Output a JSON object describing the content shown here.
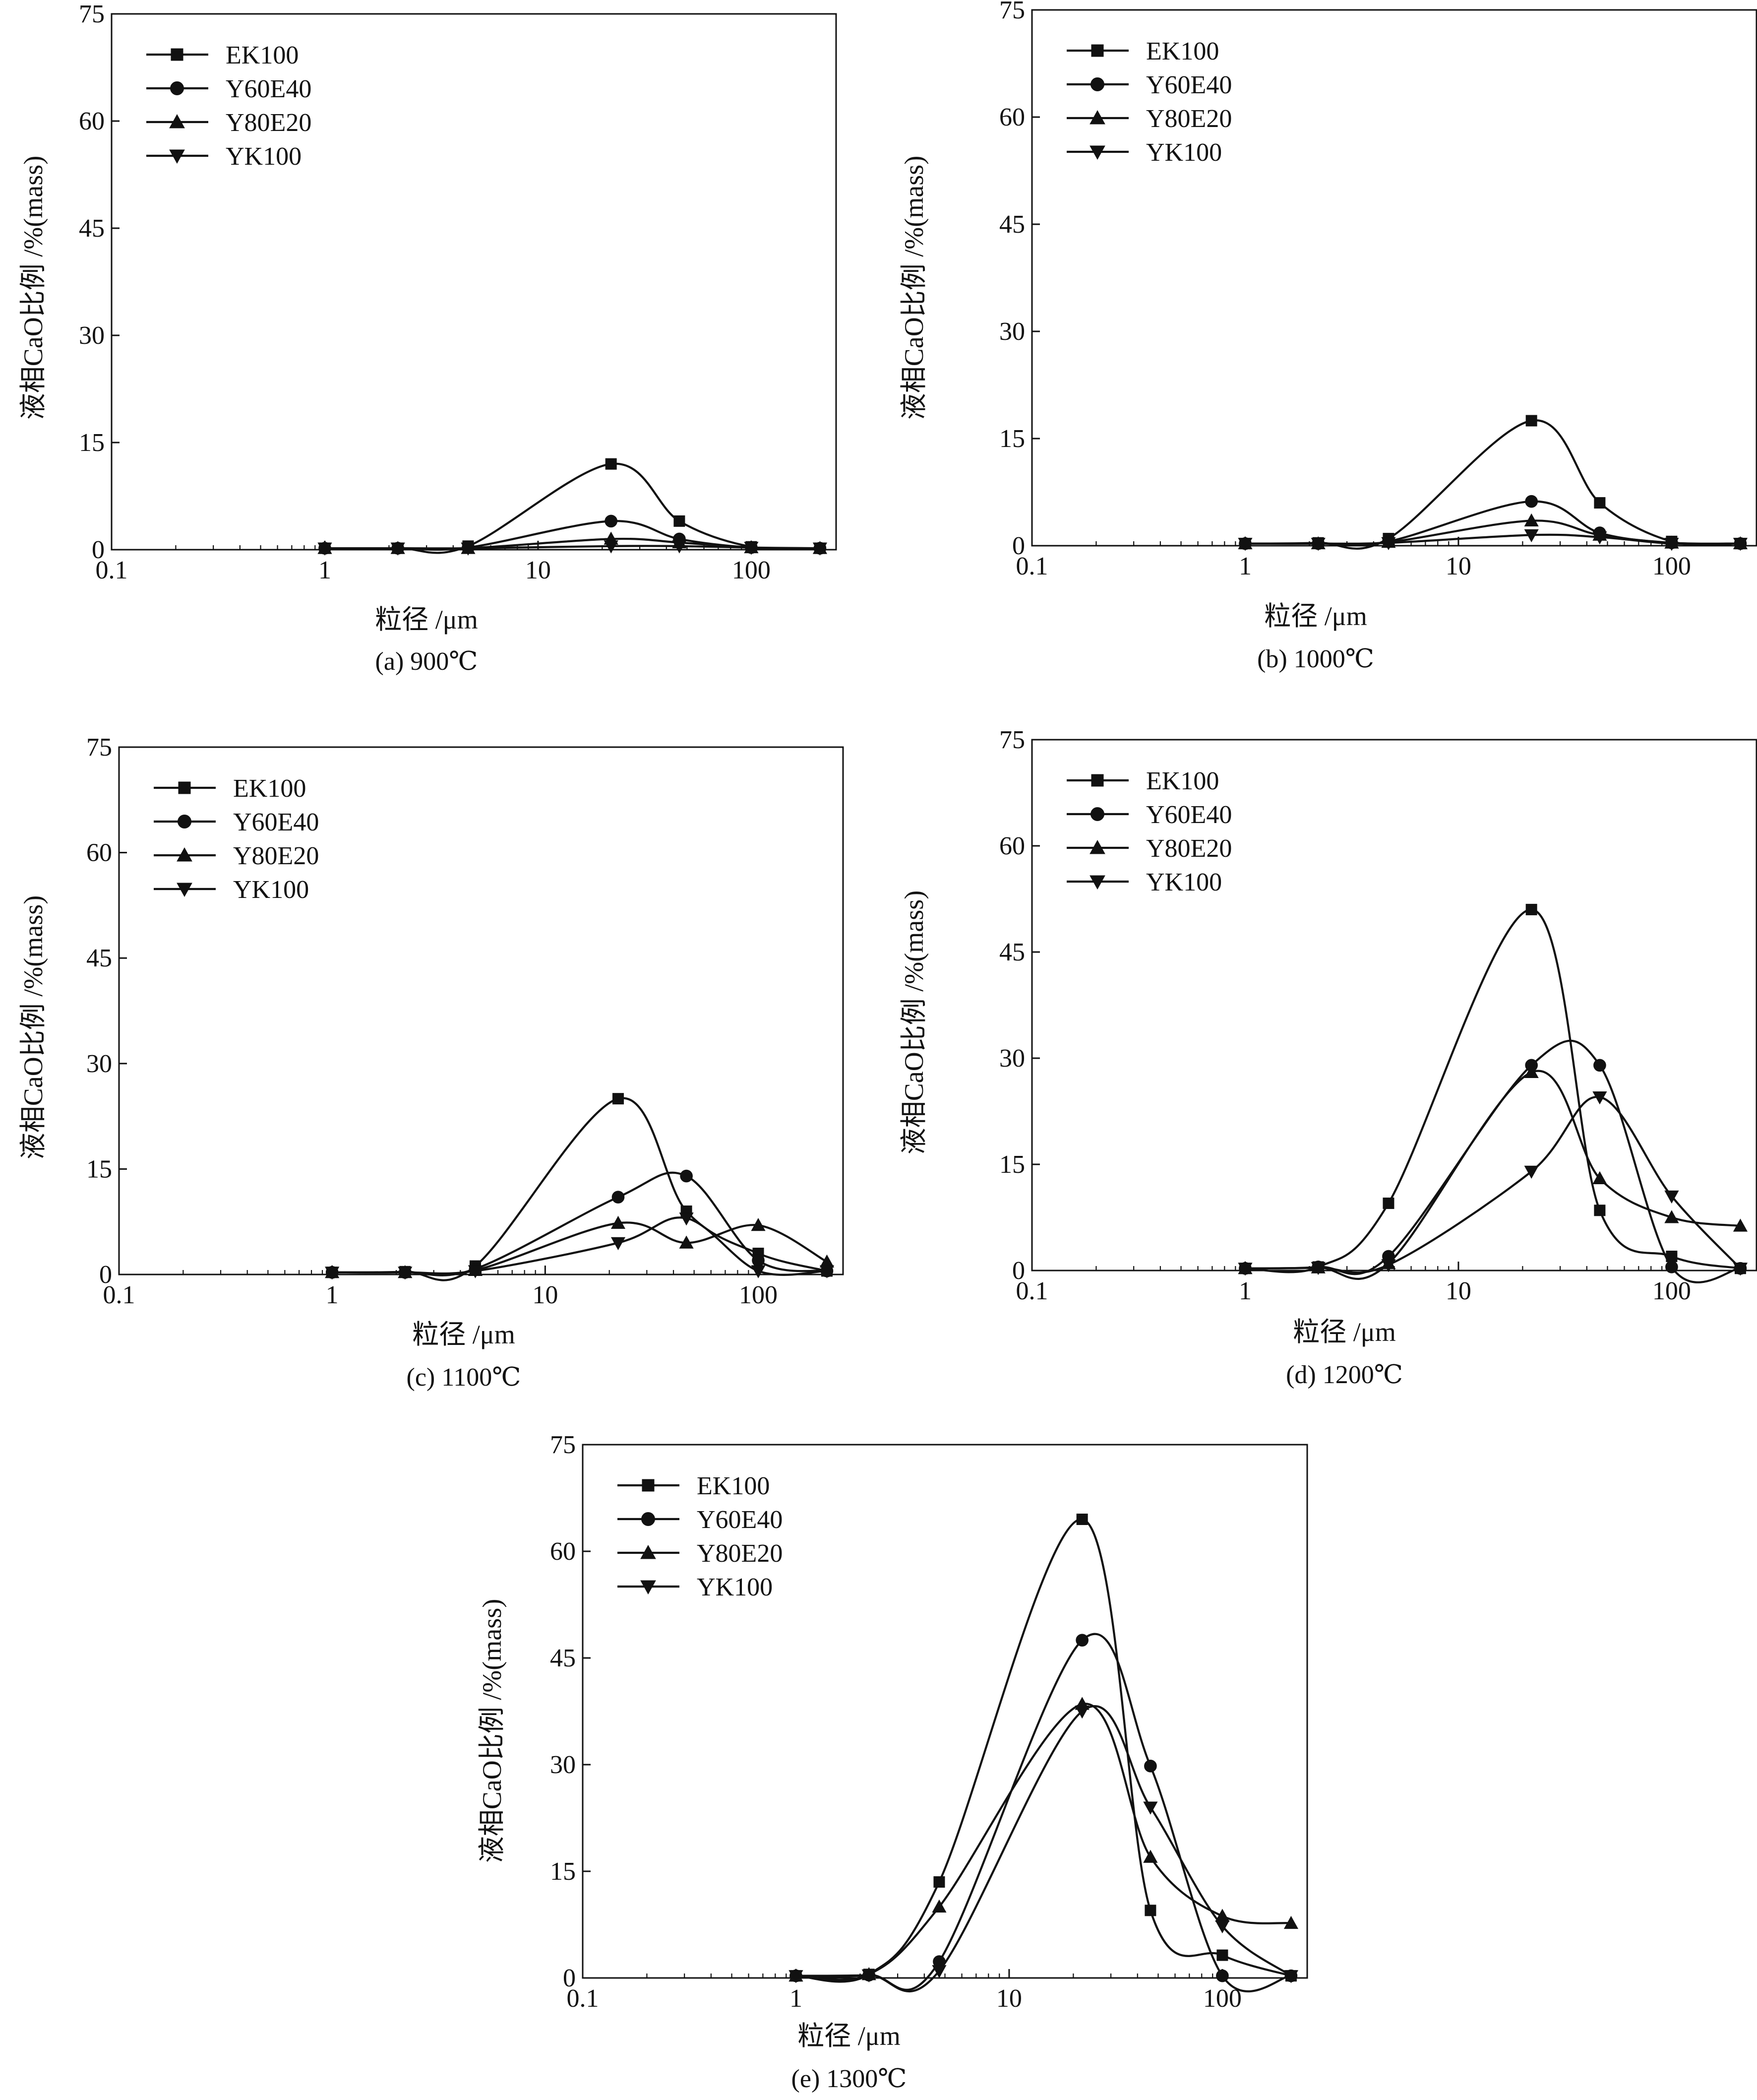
{
  "chart_data": [
    {
      "type": "line",
      "caption": "(a) 900℃",
      "xlabel": "粒径 /μm",
      "ylabel": "液相CaO比例 /%(mass)",
      "xscale": "log",
      "xlim": [
        0.1,
        250
      ],
      "ylim": [
        0,
        75
      ],
      "xticks": [
        "0.1",
        "1",
        "10",
        "100"
      ],
      "yticks": [
        "0",
        "15",
        "30",
        "45",
        "60",
        "75"
      ],
      "legend_position": "top-left",
      "series": [
        {
          "name": "EK100",
          "marker": "square",
          "points": [
            [
              1,
              0.2
            ],
            [
              2.2,
              0.2
            ],
            [
              4.7,
              0.5
            ],
            [
              22,
              12
            ],
            [
              46,
              4
            ],
            [
              100,
              0.4
            ],
            [
              210,
              0.2
            ]
          ]
        },
        {
          "name": "Y60E40",
          "marker": "circle",
          "points": [
            [
              1,
              0.2
            ],
            [
              2.2,
              0.2
            ],
            [
              4.7,
              0.3
            ],
            [
              22,
              4
            ],
            [
              46,
              1.5
            ],
            [
              100,
              0.3
            ],
            [
              210,
              0.2
            ]
          ]
        },
        {
          "name": "Y80E20",
          "marker": "triangle-up",
          "points": [
            [
              1,
              0.2
            ],
            [
              2.2,
              0.2
            ],
            [
              4.7,
              0.2
            ],
            [
              22,
              1.5
            ],
            [
              46,
              1
            ],
            [
              100,
              0.3
            ],
            [
              210,
              0.2
            ]
          ]
        },
        {
          "name": "YK100",
          "marker": "triangle-down",
          "points": [
            [
              1,
              0.2
            ],
            [
              2.2,
              0.2
            ],
            [
              4.7,
              0.2
            ],
            [
              22,
              0.5
            ],
            [
              46,
              0.5
            ],
            [
              100,
              0.3
            ],
            [
              210,
              0.2
            ]
          ]
        }
      ]
    },
    {
      "type": "line",
      "caption": "(b) 1000℃",
      "xlabel": "粒径 /μm",
      "ylabel": "液相CaO比例 /%(mass)",
      "xscale": "log",
      "xlim": [
        0.1,
        250
      ],
      "ylim": [
        0,
        75
      ],
      "xticks": [
        "0.1",
        "1",
        "10",
        "100"
      ],
      "yticks": [
        "0",
        "15",
        "30",
        "45",
        "60",
        "75"
      ],
      "legend_position": "top-left",
      "series": [
        {
          "name": "EK100",
          "marker": "square",
          "points": [
            [
              1,
              0.3
            ],
            [
              2.2,
              0.4
            ],
            [
              4.7,
              1
            ],
            [
              22,
              17.5
            ],
            [
              46,
              6
            ],
            [
              100,
              0.6
            ],
            [
              210,
              0.3
            ]
          ]
        },
        {
          "name": "Y60E40",
          "marker": "circle",
          "points": [
            [
              1,
              0.3
            ],
            [
              2.2,
              0.3
            ],
            [
              4.7,
              0.6
            ],
            [
              22,
              6.2
            ],
            [
              46,
              1.8
            ],
            [
              100,
              0.4
            ],
            [
              210,
              0.3
            ]
          ]
        },
        {
          "name": "Y80E20",
          "marker": "triangle-up",
          "points": [
            [
              1,
              0.3
            ],
            [
              2.2,
              0.3
            ],
            [
              4.7,
              0.5
            ],
            [
              22,
              3.5
            ],
            [
              46,
              1.5
            ],
            [
              100,
              0.4
            ],
            [
              210,
              0.3
            ]
          ]
        },
        {
          "name": "YK100",
          "marker": "triangle-down",
          "points": [
            [
              1,
              0.3
            ],
            [
              2.2,
              0.3
            ],
            [
              4.7,
              0.4
            ],
            [
              22,
              1.5
            ],
            [
              46,
              1.2
            ],
            [
              100,
              0.3
            ],
            [
              210,
              0.3
            ]
          ]
        }
      ]
    },
    {
      "type": "line",
      "caption": "(c) 1100℃",
      "xlabel": "粒径 /μm",
      "ylabel": "液相CaO比例 /%(mass)",
      "xscale": "log",
      "xlim": [
        0.1,
        250
      ],
      "ylim": [
        0,
        75
      ],
      "xticks": [
        "0.1",
        "1",
        "10",
        "100"
      ],
      "yticks": [
        "0",
        "15",
        "30",
        "45",
        "60",
        "75"
      ],
      "legend_position": "top-left",
      "series": [
        {
          "name": "EK100",
          "marker": "square",
          "points": [
            [
              1,
              0.3
            ],
            [
              2.2,
              0.4
            ],
            [
              4.7,
              1.2
            ],
            [
              22,
              25
            ],
            [
              46,
              9
            ],
            [
              100,
              3
            ],
            [
              210,
              0.5
            ]
          ]
        },
        {
          "name": "Y60E40",
          "marker": "circle",
          "points": [
            [
              1,
              0.3
            ],
            [
              2.2,
              0.3
            ],
            [
              4.7,
              0.8
            ],
            [
              22,
              11
            ],
            [
              46,
              14
            ],
            [
              100,
              2
            ],
            [
              210,
              0.5
            ]
          ]
        },
        {
          "name": "Y80E20",
          "marker": "triangle-up",
          "points": [
            [
              1,
              0.3
            ],
            [
              2.2,
              0.3
            ],
            [
              4.7,
              0.6
            ],
            [
              22,
              7.3
            ],
            [
              46,
              4.5
            ],
            [
              100,
              7
            ],
            [
              210,
              1.8
            ]
          ]
        },
        {
          "name": "YK100",
          "marker": "triangle-down",
          "points": [
            [
              1,
              0.3
            ],
            [
              2.2,
              0.3
            ],
            [
              4.7,
              0.5
            ],
            [
              22,
              4.5
            ],
            [
              46,
              8
            ],
            [
              100,
              0.5
            ],
            [
              210,
              0.5
            ]
          ]
        }
      ]
    },
    {
      "type": "line",
      "caption": "(d) 1200℃",
      "xlabel": "粒径 /μm",
      "ylabel": "液相CaO比例 /%(mass)",
      "xscale": "log",
      "xlim": [
        0.1,
        250
      ],
      "ylim": [
        0,
        75
      ],
      "xticks": [
        "0.1",
        "1",
        "10",
        "100"
      ],
      "yticks": [
        "0",
        "15",
        "30",
        "45",
        "60",
        "75"
      ],
      "legend_position": "top-left",
      "series": [
        {
          "name": "EK100",
          "marker": "square",
          "points": [
            [
              1,
              0.3
            ],
            [
              2.2,
              0.5
            ],
            [
              4.7,
              9.5
            ],
            [
              22,
              51
            ],
            [
              46,
              8.5
            ],
            [
              100,
              2
            ],
            [
              210,
              0.3
            ]
          ]
        },
        {
          "name": "Y60E40",
          "marker": "circle",
          "points": [
            [
              1,
              0.3
            ],
            [
              2.2,
              0.5
            ],
            [
              4.7,
              2
            ],
            [
              22,
              29
            ],
            [
              46,
              29
            ],
            [
              100,
              0.5
            ],
            [
              210,
              0.3
            ]
          ]
        },
        {
          "name": "Y80E20",
          "marker": "triangle-up",
          "points": [
            [
              1,
              0.3
            ],
            [
              2.2,
              0.4
            ],
            [
              4.7,
              1
            ],
            [
              22,
              28
            ],
            [
              46,
              13
            ],
            [
              100,
              7.5
            ],
            [
              210,
              6.3
            ]
          ]
        },
        {
          "name": "YK100",
          "marker": "triangle-down",
          "points": [
            [
              1,
              0.3
            ],
            [
              2.2,
              0.4
            ],
            [
              4.7,
              0.8
            ],
            [
              22,
              14
            ],
            [
              46,
              24.5
            ],
            [
              100,
              10.5
            ],
            [
              210,
              0.3
            ]
          ]
        }
      ]
    },
    {
      "type": "line",
      "caption": "(e) 1300℃",
      "xlabel": "粒径 /μm",
      "ylabel": "液相CaO比例 /%(mass)",
      "xscale": "log",
      "xlim": [
        0.1,
        250
      ],
      "ylim": [
        0,
        75
      ],
      "xticks": [
        "0.1",
        "1",
        "10",
        "100"
      ],
      "yticks": [
        "0",
        "15",
        "30",
        "45",
        "60",
        "75"
      ],
      "legend_position": "top-left",
      "series": [
        {
          "name": "EK100",
          "marker": "square",
          "points": [
            [
              1,
              0.3
            ],
            [
              2.2,
              0.5
            ],
            [
              4.7,
              13.5
            ],
            [
              22,
              64.5
            ],
            [
              46,
              9.5
            ],
            [
              100,
              3.2
            ],
            [
              210,
              0.3
            ]
          ]
        },
        {
          "name": "Y60E40",
          "marker": "circle",
          "points": [
            [
              1,
              0.3
            ],
            [
              2.2,
              0.4
            ],
            [
              4.7,
              2.3
            ],
            [
              22,
              47.5
            ],
            [
              46,
              29.8
            ],
            [
              100,
              0.3
            ],
            [
              210,
              0.3
            ]
          ]
        },
        {
          "name": "Y80E20",
          "marker": "triangle-up",
          "points": [
            [
              1,
              0.3
            ],
            [
              2.2,
              0.5
            ],
            [
              4.7,
              10
            ],
            [
              22,
              38.5
            ],
            [
              46,
              17
            ],
            [
              100,
              8.7
            ],
            [
              210,
              7.7
            ]
          ]
        },
        {
          "name": "YK100",
          "marker": "triangle-down",
          "points": [
            [
              1,
              0.3
            ],
            [
              2.2,
              0.4
            ],
            [
              4.7,
              1
            ],
            [
              22,
              37.5
            ],
            [
              46,
              24
            ],
            [
              100,
              7.3
            ],
            [
              210,
              0.3
            ]
          ]
        }
      ]
    }
  ]
}
